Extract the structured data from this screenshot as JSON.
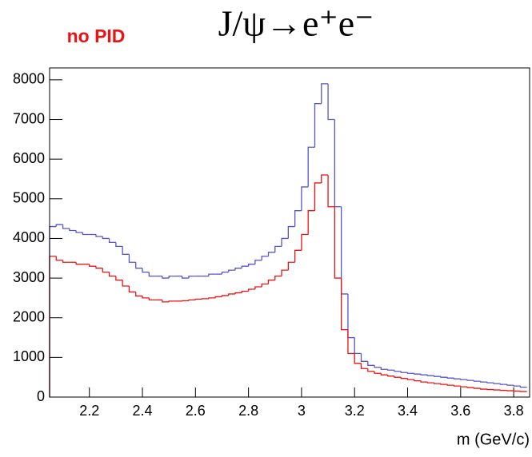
{
  "chart_data": {
    "type": "histogram",
    "title": "J/ψ→e⁺e⁻",
    "annotation": "no PID",
    "x_label": "m (GeV/c)",
    "bins": [
      2.05,
      2.075,
      2.1,
      2.125,
      2.15,
      2.175,
      2.2,
      2.225,
      2.25,
      2.275,
      2.3,
      2.325,
      2.35,
      2.375,
      2.4,
      2.425,
      2.45,
      2.475,
      2.5,
      2.525,
      2.55,
      2.575,
      2.6,
      2.625,
      2.65,
      2.675,
      2.7,
      2.725,
      2.75,
      2.775,
      2.8,
      2.825,
      2.85,
      2.875,
      2.9,
      2.925,
      2.95,
      2.975,
      3.0,
      3.025,
      3.05,
      3.075,
      3.1,
      3.125,
      3.15,
      3.175,
      3.2,
      3.225,
      3.25,
      3.275,
      3.3,
      3.325,
      3.35,
      3.375,
      3.4,
      3.425,
      3.45,
      3.475,
      3.5,
      3.525,
      3.55,
      3.575,
      3.6,
      3.625,
      3.65,
      3.675,
      3.7,
      3.725,
      3.75,
      3.775,
      3.8,
      3.825,
      3.85
    ],
    "series": [
      {
        "color": "#5555cc",
        "values": [
          4300,
          4350,
          4250,
          4200,
          4150,
          4100,
          4100,
          4050,
          4000,
          3900,
          3800,
          3600,
          3400,
          3250,
          3150,
          3050,
          3050,
          3000,
          3050,
          3050,
          3000,
          3050,
          3050,
          3050,
          3100,
          3100,
          3150,
          3200,
          3250,
          3300,
          3350,
          3450,
          3550,
          3650,
          3800,
          4000,
          4300,
          4700,
          5300,
          6300,
          7400,
          7900,
          7000,
          4800,
          2600,
          1500,
          1100,
          900,
          800,
          750,
          700,
          680,
          650,
          620,
          600,
          580,
          560,
          540,
          520,
          500,
          480,
          460,
          440,
          420,
          400,
          380,
          360,
          340,
          320,
          300,
          280,
          250
        ]
      },
      {
        "color": "#ee1111",
        "values": [
          3550,
          3450,
          3400,
          3400,
          3350,
          3350,
          3300,
          3250,
          3150,
          3050,
          2950,
          2800,
          2650,
          2550,
          2500,
          2450,
          2450,
          2400,
          2420,
          2420,
          2430,
          2450,
          2470,
          2480,
          2500,
          2530,
          2560,
          2600,
          2630,
          2670,
          2720,
          2780,
          2850,
          2950,
          3050,
          3200,
          3400,
          3700,
          4100,
          4700,
          5400,
          5600,
          4800,
          3000,
          1700,
          1100,
          850,
          720,
          650,
          600,
          560,
          530,
          500,
          470,
          440,
          410,
          380,
          360,
          340,
          320,
          300,
          280,
          260,
          240,
          220,
          200,
          190,
          180,
          170,
          160,
          150,
          140
        ]
      }
    ],
    "xlim": [
      2.05,
      3.86
    ],
    "xticks": [
      2.2,
      2.4,
      2.6,
      2.8,
      3,
      3.2,
      3.4,
      3.6,
      3.8
    ],
    "ylim": [
      0,
      8300
    ],
    "yticks": [
      0,
      1000,
      2000,
      3000,
      4000,
      5000,
      6000,
      7000,
      8000
    ]
  }
}
